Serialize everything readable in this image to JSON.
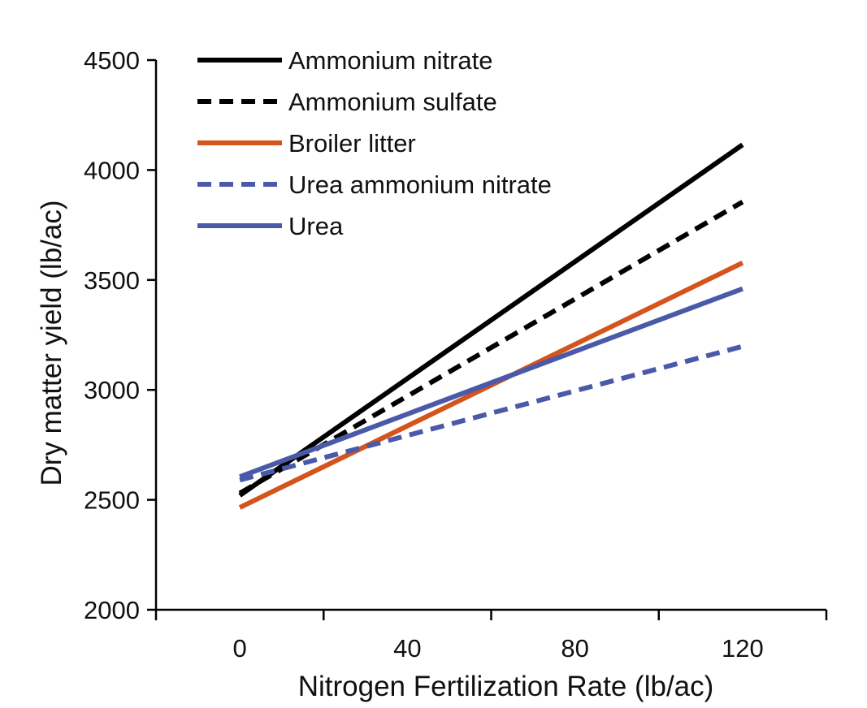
{
  "chart_data": {
    "type": "line",
    "title": "",
    "xlabel": "Nitrogen Fertilization Rate (lb/ac)",
    "ylabel": "Dry matter yield (lb/ac)",
    "xlim": [
      -20,
      140
    ],
    "ylim": [
      2000,
      4500
    ],
    "xticks": [
      -20,
      20,
      60,
      100,
      140
    ],
    "xtick_labels": [
      {
        "value": 0,
        "label": "0"
      },
      {
        "value": 40,
        "label": "40"
      },
      {
        "value": 80,
        "label": "80"
      },
      {
        "value": 120,
        "label": "120"
      }
    ],
    "yticks": [
      2000,
      2500,
      3000,
      3500,
      4000,
      4500
    ],
    "ytick_labels": [
      "2000",
      "2500",
      "3000",
      "3500",
      "4000",
      "4500"
    ],
    "grid": false,
    "legend_position": "top-left",
    "series": [
      {
        "name": "Ammonium nitrate",
        "color": "#000000",
        "dash": "solid",
        "x": [
          0,
          120
        ],
        "y": [
          2520,
          4115
        ]
      },
      {
        "name": "Ammonium sulfate",
        "color": "#000000",
        "dash": "dashed",
        "x": [
          0,
          120
        ],
        "y": [
          2530,
          3855
        ]
      },
      {
        "name": "Broiler litter",
        "color": "#D4541B",
        "dash": "solid",
        "x": [
          0,
          120
        ],
        "y": [
          2465,
          3578
        ]
      },
      {
        "name": "Urea ammonium nitrate",
        "color": "#4A5AA8",
        "dash": "dashed",
        "x": [
          0,
          120
        ],
        "y": [
          2590,
          3198
        ]
      },
      {
        "name": "Urea",
        "color": "#4A5AA8",
        "dash": "solid",
        "x": [
          0,
          120
        ],
        "y": [
          2605,
          3460
        ]
      }
    ]
  }
}
